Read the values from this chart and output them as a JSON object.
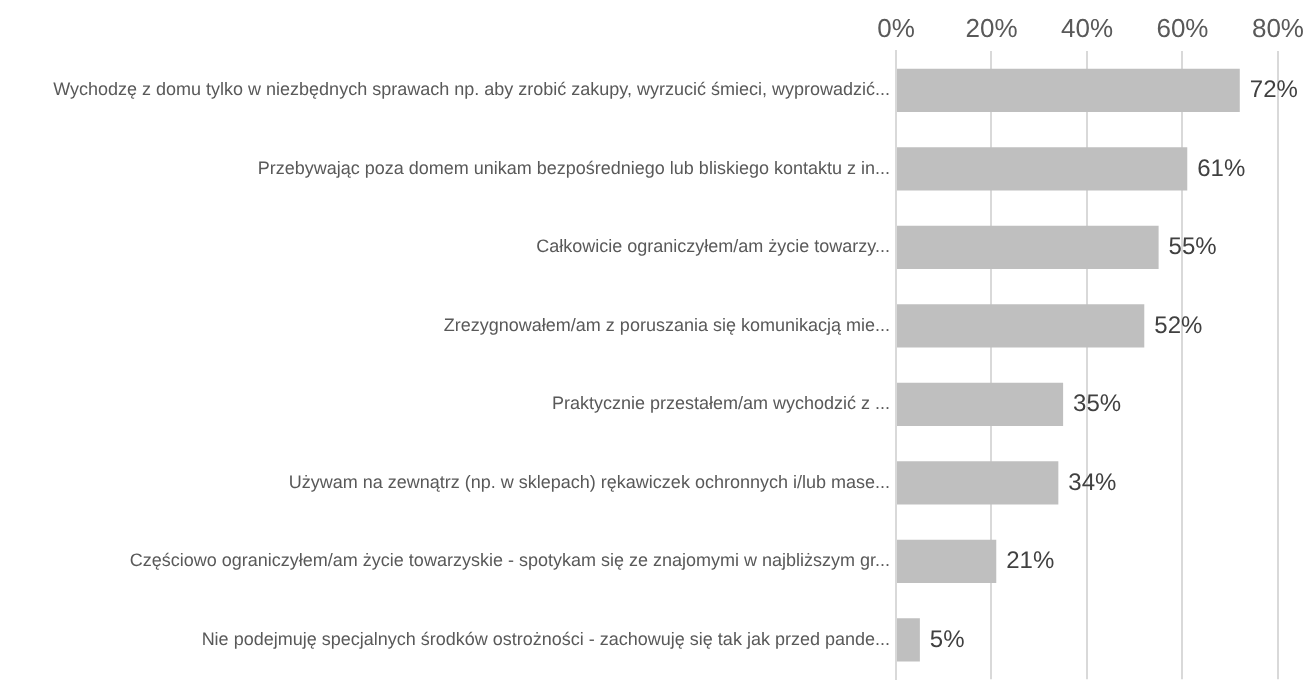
{
  "chart_data": {
    "type": "bar",
    "orientation": "horizontal",
    "categories": [
      "Wychodzę z domu tylko w niezbędnych sprawach np. aby zrobić zakupy, wyrzucić śmieci, wyprowadzić...",
      "Przebywając poza domem unikam bezpośredniego lub bliskiego kontaktu z in...",
      "Całkowicie ograniczyłem/am życie towarzy...",
      "Zrezygnowałem/am z poruszania się komunikacją mie...",
      "Praktycznie przestałem/am wychodzić z ...",
      "Używam na zewnątrz (np. w sklepach) rękawiczek ochronnych i/lub mase...",
      "Częściowo ograniczyłem/am życie towarzyskie - spotykam się ze znajomymi w najbliższym gr...",
      "Nie podejmuję specjalnych środków ostrożności - zachowuję się tak jak przed pande..."
    ],
    "values": [
      72,
      61,
      55,
      52,
      35,
      34,
      21,
      5
    ],
    "value_labels": [
      "72%",
      "61%",
      "55%",
      "52%",
      "35%",
      "34%",
      "21%",
      "5%"
    ],
    "color": "#bfbfbf",
    "xlim": [
      0,
      80
    ],
    "xticks": [
      {
        "value": 0,
        "label": "0%"
      },
      {
        "value": 20,
        "label": "20%"
      },
      {
        "value": 40,
        "label": "40%"
      },
      {
        "value": 60,
        "label": "60%"
      },
      {
        "value": 80,
        "label": "80%"
      }
    ],
    "grid": "x",
    "legend": false
  }
}
